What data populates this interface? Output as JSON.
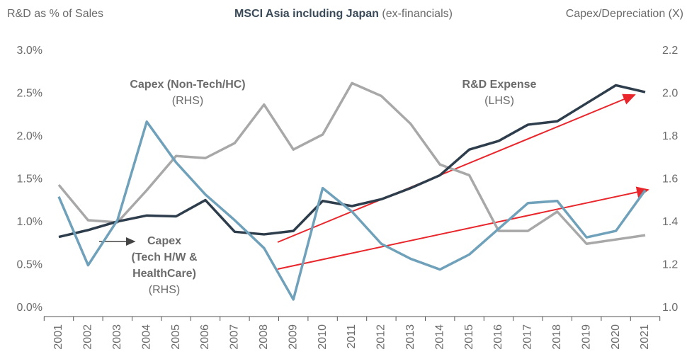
{
  "chart_data": {
    "type": "line",
    "title": "MSCI Asia including Japan",
    "subtitle": "(ex-financials)",
    "y_label": "R&D as % of Sales",
    "y2_label": "Capex/Depreciation (X)",
    "categories": [
      "2001",
      "2002",
      "2003",
      "2004",
      "2005",
      "2006",
      "2007",
      "2008",
      "2009",
      "2010",
      "2011",
      "2012",
      "2013",
      "2014",
      "2015",
      "2016",
      "2017",
      "2018",
      "2019",
      "2020",
      "2021"
    ],
    "ylim": [
      0,
      3
    ],
    "yticks": [
      {
        "value": 0,
        "label": "0.0%"
      },
      {
        "value": 0.5,
        "label": "0.5%"
      },
      {
        "value": 1,
        "label": "1.0%"
      },
      {
        "value": 1.5,
        "label": "1.5%"
      },
      {
        "value": 2,
        "label": "2.0%"
      },
      {
        "value": 2.5,
        "label": "2.5%"
      },
      {
        "value": 3,
        "label": "3.0%"
      }
    ],
    "y2lim": [
      1,
      2.2
    ],
    "y2ticks": [
      {
        "value": 1,
        "label": "1.0"
      },
      1.2,
      1.4,
      1.6,
      1.8,
      {
        "value": 2,
        "label": "2.0"
      },
      2.2
    ],
    "grid": false,
    "series": [
      {
        "name": "Capex (Non-Tech/HC)",
        "color": "#a8a8a8",
        "axis": "y2",
        "values": [
          1.575,
          1.41,
          1.4,
          1.55,
          1.71,
          1.7,
          1.77,
          1.95,
          1.74,
          1.81,
          2.05,
          1.99,
          1.86,
          1.67,
          1.62,
          1.36,
          1.36,
          1.45,
          1.3,
          1.32,
          1.34
        ]
      },
      {
        "name": "R&D Expense",
        "color": "#2e3d4c",
        "axis": "y",
        "values": [
          0.83,
          0.91,
          1.01,
          1.08,
          1.07,
          1.26,
          0.89,
          0.86,
          0.9,
          1.25,
          1.19,
          1.27,
          1.4,
          1.55,
          1.85,
          1.95,
          2.14,
          2.18,
          2.39,
          2.6,
          2.52
        ]
      },
      {
        "name": "Capex",
        "color": "#6fa1ba",
        "axis": "y2",
        "values": [
          1.52,
          1.2,
          1.41,
          1.87,
          1.68,
          1.53,
          1.41,
          1.28,
          1.04,
          1.56,
          1.45,
          1.3,
          1.23,
          1.18,
          1.25,
          1.37,
          1.49,
          1.5,
          1.33,
          1.36,
          1.55
        ]
      }
    ],
    "annotations": [
      "(RHS)",
      "(LHS)",
      "(Tech H/W &",
      "HealthCare)",
      "(RHS)"
    ]
  }
}
